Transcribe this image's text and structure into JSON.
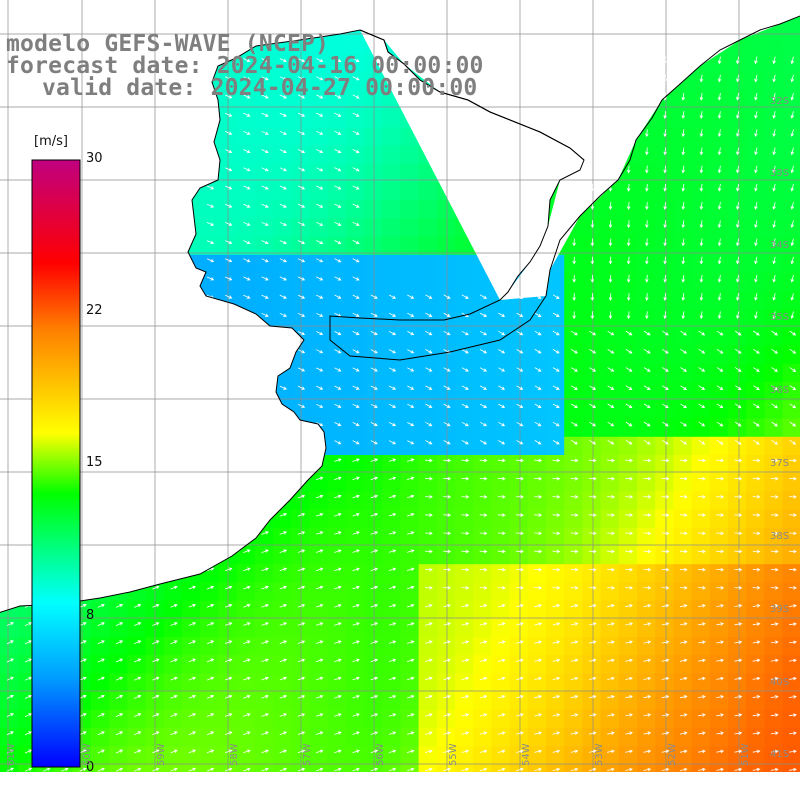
{
  "title": {
    "line1": "modelo GEFS-WAVE (NCEP)",
    "line2": "forecast date: 2024-04-16 00:00:00",
    "line3": "valid date: 2024-04-27 00:00:00"
  },
  "colorbar": {
    "unit": "[m/s]",
    "min": 0,
    "max": 30,
    "ticks": [
      "30",
      "22",
      "15",
      "8",
      "0"
    ],
    "tick_values": [
      30,
      22,
      15,
      8,
      0
    ],
    "colors": [
      "#0000ff",
      "#00a0ff",
      "#00ffff",
      "#00ff00",
      "#ffff00",
      "#ff8000",
      "#ff0000",
      "#c00080"
    ],
    "color_stops": [
      0,
      0.15,
      0.27,
      0.45,
      0.55,
      0.72,
      0.83,
      1.0
    ]
  },
  "map": {
    "lat_labels": [
      "32S",
      "33S",
      "34S",
      "35S",
      "36S",
      "37S",
      "38S",
      "39S",
      "40S",
      "41S"
    ],
    "lat_values": [
      -32,
      -33,
      -34,
      -35,
      -36,
      -37,
      -38,
      -39,
      -40,
      -41
    ],
    "lon_labels": [
      "61W",
      "60W",
      "59W",
      "58W",
      "57W",
      "56W",
      "55W",
      "54W",
      "53W",
      "52W",
      "51W"
    ],
    "lon_values": [
      -61,
      -60,
      -59,
      -58,
      -57,
      -56,
      -55,
      -54,
      -53,
      -52,
      -51
    ],
    "lat_range": [
      -41.3,
      -30.4
    ],
    "lon_range": [
      -62.0,
      -50.0
    ],
    "land_color": "#ffffff",
    "coast_color": "#000000",
    "grid_color": "#8c8c8c",
    "arrow_color": "#ffffff"
  }
}
